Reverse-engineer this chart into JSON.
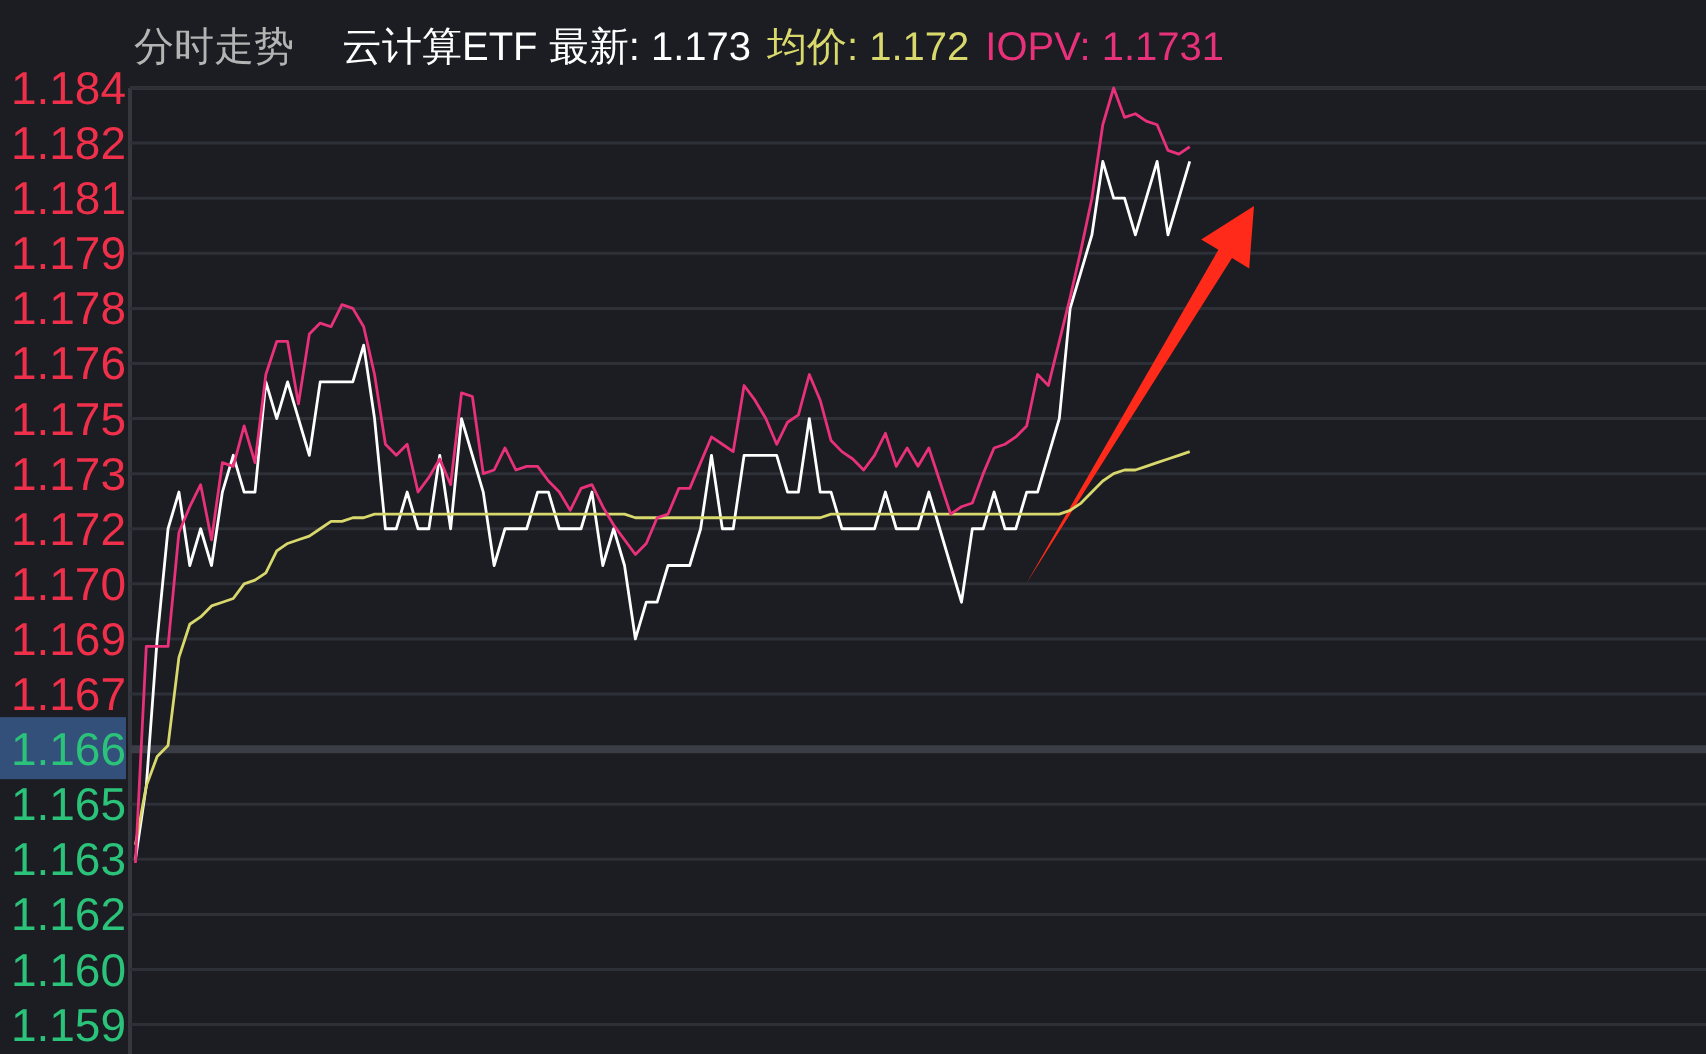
{
  "chart_data": {
    "type": "line",
    "title": "分时走势",
    "grid": "y",
    "tick_labels": "y",
    "marker": "none",
    "line_style": "solid",
    "categories": [
      null,
      null,
      null,
      null,
      null,
      null,
      null,
      null,
      null,
      null,
      null,
      null,
      null,
      null,
      null,
      null,
      null,
      null,
      null,
      null,
      null,
      null,
      null,
      null,
      null,
      null,
      null,
      null,
      null,
      null,
      null,
      null,
      null,
      null,
      null,
      null,
      null,
      null,
      null,
      null,
      null,
      null,
      null,
      null,
      null,
      null,
      null,
      null,
      null,
      null,
      null,
      null,
      null,
      null,
      null,
      null,
      null,
      null,
      null,
      null,
      null,
      null,
      null,
      null,
      null,
      null,
      null,
      null,
      null,
      null,
      null,
      null,
      null,
      null,
      null,
      null,
      null,
      null,
      null,
      null,
      null,
      null,
      null,
      null,
      null,
      null,
      null,
      null,
      null,
      null,
      null,
      null,
      null,
      null,
      null,
      null,
      null,
      null,
      null,
      null,
      null,
      null,
      null,
      null,
      null,
      null,
      null,
      null,
      null,
      null,
      null,
      null,
      null,
      null,
      null,
      null,
      null,
      null,
      null,
      null,
      null,
      null,
      null,
      null,
      null,
      null,
      null,
      null,
      null,
      null,
      null,
      null,
      null,
      null,
      null,
      null,
      null,
      null,
      null,
      null,
      null,
      null,
      null,
      null,
      null
    ],
    "ylim": [
      1.1577,
      1.184
    ],
    "yticks": [
      {
        "value": 1.184,
        "label": "1.184"
      },
      {
        "value": 1.1825,
        "label": "1.182"
      },
      {
        "value": 1.181,
        "label": "1.181"
      },
      {
        "value": 1.1795,
        "label": "1.179"
      },
      {
        "value": 1.178,
        "label": "1.178"
      },
      {
        "value": 1.1765,
        "label": "1.176"
      },
      {
        "value": 1.175,
        "label": "1.175"
      },
      {
        "value": 1.1735,
        "label": "1.173"
      },
      {
        "value": 1.172,
        "label": "1.172"
      },
      {
        "value": 1.1705,
        "label": "1.170"
      },
      {
        "value": 1.169,
        "label": "1.169"
      },
      {
        "value": 1.1675,
        "label": "1.167"
      },
      {
        "value": 1.166,
        "label": "1.166"
      },
      {
        "value": 1.1645,
        "label": "1.165"
      },
      {
        "value": 1.163,
        "label": "1.163"
      },
      {
        "value": 1.1615,
        "label": "1.162"
      },
      {
        "value": 1.16,
        "label": "1.160"
      },
      {
        "value": 1.1585,
        "label": "1.159"
      }
    ],
    "ref_lines": [
      {
        "axis": "y",
        "value": 1.166,
        "color": "#3a3d45"
      }
    ],
    "series": [
      {
        "name": "云计算ETF 最新: 1.173",
        "color": "#ffffff",
        "values": [
          1.163,
          1.165,
          1.169,
          1.172,
          1.173,
          1.171,
          1.172,
          1.171,
          1.173,
          1.174,
          1.173,
          1.173,
          1.176,
          1.175,
          1.176,
          1.175,
          1.174,
          1.176,
          1.176,
          1.176,
          1.176,
          1.177,
          1.175,
          1.172,
          1.172,
          1.173,
          1.172,
          1.172,
          1.174,
          1.172,
          1.175,
          1.174,
          1.173,
          1.171,
          1.172,
          1.172,
          1.172,
          1.173,
          1.173,
          1.172,
          1.172,
          1.172,
          1.173,
          1.171,
          1.172,
          1.171,
          1.169,
          1.17,
          1.17,
          1.171,
          1.171,
          1.171,
          1.172,
          1.174,
          1.172,
          1.172,
          1.174,
          1.174,
          1.174,
          1.174,
          1.173,
          1.173,
          1.175,
          1.173,
          1.173,
          1.172,
          1.172,
          1.172,
          1.172,
          1.173,
          1.172,
          1.172,
          1.172,
          1.173,
          1.172,
          1.171,
          1.17,
          1.172,
          1.172,
          1.173,
          1.172,
          1.172,
          1.173,
          1.173,
          1.174,
          1.175,
          1.178,
          1.179,
          1.18,
          1.182,
          1.181,
          1.181,
          1.18,
          1.181,
          1.182,
          1.18,
          1.181,
          1.182,
          null,
          null,
          null,
          null,
          null,
          null,
          null,
          null,
          null,
          null,
          null,
          null,
          null,
          null,
          null,
          null,
          null,
          null,
          null,
          null,
          null,
          null,
          null,
          null,
          null,
          null,
          null,
          null,
          null,
          null,
          null,
          null,
          null,
          null,
          null,
          null,
          null,
          null,
          null,
          null,
          null,
          null,
          null,
          null,
          null,
          null,
          null
        ]
      },
      {
        "name": "均价: 1.172",
        "color": "#d8d86c",
        "values": [
          1.1634,
          1.165,
          1.1658,
          1.1661,
          1.1685,
          1.1694,
          1.1696,
          1.1699,
          1.17,
          1.1701,
          1.1705,
          1.1706,
          1.1708,
          1.1714,
          1.1716,
          1.1717,
          1.1718,
          1.172,
          1.1722,
          1.1722,
          1.1723,
          1.1723,
          1.1724,
          1.1724,
          1.1724,
          1.1724,
          1.1724,
          1.1724,
          1.1724,
          1.1724,
          1.1724,
          1.1724,
          1.1724,
          1.1724,
          1.1724,
          1.1724,
          1.1724,
          1.1724,
          1.1724,
          1.1724,
          1.1724,
          1.1724,
          1.1724,
          1.1724,
          1.1724,
          1.1724,
          1.1723,
          1.1723,
          1.1723,
          1.1723,
          1.1723,
          1.1723,
          1.1723,
          1.1723,
          1.1723,
          1.1723,
          1.1723,
          1.1723,
          1.1723,
          1.1723,
          1.1723,
          1.1723,
          1.1723,
          1.1723,
          1.1724,
          1.1724,
          1.1724,
          1.1724,
          1.1724,
          1.1724,
          1.1724,
          1.1724,
          1.1724,
          1.1724,
          1.1724,
          1.1724,
          1.1724,
          1.1724,
          1.1724,
          1.1724,
          1.1724,
          1.1724,
          1.1724,
          1.1724,
          1.1724,
          1.1724,
          1.1725,
          1.1727,
          1.173,
          1.1733,
          1.1735,
          1.1736,
          1.1736,
          1.1737,
          1.1738,
          1.1739,
          1.174,
          1.1741,
          null,
          null,
          null,
          null,
          null,
          null,
          null,
          null,
          null,
          null,
          null,
          null,
          null,
          null,
          null,
          null,
          null,
          null,
          null,
          null,
          null,
          null,
          null,
          null,
          null,
          null,
          null,
          null,
          null,
          null,
          null,
          null,
          null,
          null,
          null,
          null,
          null,
          null,
          null,
          null,
          null,
          null,
          null,
          null,
          null,
          null,
          null
        ]
      },
      {
        "name": "IOPV: 1.1731",
        "color": "#e8317a",
        "values": [
          1.1629,
          1.1688,
          1.1688,
          1.1688,
          1.1719,
          1.1726,
          1.1732,
          1.1717,
          1.1738,
          1.1737,
          1.1748,
          1.1738,
          1.1762,
          1.1771,
          1.1771,
          1.1754,
          1.1773,
          1.1776,
          1.1775,
          1.1781,
          1.178,
          1.1775,
          1.1762,
          1.1743,
          1.174,
          1.1743,
          1.173,
          1.1734,
          1.1739,
          1.1732,
          1.1757,
          1.1756,
          1.1735,
          1.1736,
          1.1742,
          1.1736,
          1.1737,
          1.1737,
          1.1733,
          1.173,
          1.1725,
          1.1731,
          1.1732,
          1.1726,
          1.1721,
          1.1717,
          1.1713,
          1.1716,
          1.1723,
          1.1724,
          1.1731,
          1.1731,
          1.1738,
          1.1745,
          1.1743,
          1.1741,
          1.1759,
          1.1755,
          1.175,
          1.1743,
          1.1749,
          1.1751,
          1.1762,
          1.1755,
          1.1744,
          1.1741,
          1.1739,
          1.1736,
          1.174,
          1.1746,
          1.1737,
          1.1742,
          1.1737,
          1.1742,
          1.1733,
          1.1724,
          1.1726,
          1.1727,
          1.1735,
          1.1742,
          1.1743,
          1.1745,
          1.1748,
          1.1762,
          1.1759,
          1.1771,
          1.1783,
          1.1796,
          1.181,
          1.183,
          1.184,
          1.1832,
          1.1833,
          1.1831,
          1.183,
          1.1823,
          1.1822,
          1.1824,
          null,
          null,
          null,
          null,
          null,
          null,
          null,
          null,
          null,
          null,
          null,
          null,
          null,
          null,
          null,
          null,
          null,
          null,
          null,
          null,
          null,
          null,
          null,
          null,
          null,
          null,
          null,
          null,
          null,
          null,
          null,
          null,
          null,
          null,
          null,
          null,
          null,
          null,
          null,
          null,
          null,
          null,
          null,
          null,
          null,
          null,
          null
        ]
      }
    ]
  }
}
